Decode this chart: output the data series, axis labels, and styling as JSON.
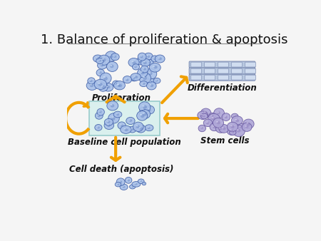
{
  "title": "1. Balance of proliferation & apoptosis",
  "title_fontsize": 13,
  "title_color": "#111111",
  "bg_color": "#f5f5f5",
  "separator_color": "#888888",
  "arrow_color": "#F0A000",
  "box_color": "#daf0ee",
  "box_edgecolor": "#99cccc",
  "labels": {
    "proliferation": "Proliferation",
    "baseline": "Baseline cell population",
    "apoptosis": "Cell death (apoptosis)",
    "differentiation": "Differentiation",
    "stem": "Stem cells"
  },
  "label_fontsize": 8.5,
  "label_bold": true,
  "label_color": "#111111",
  "cell_blue_fill": "#a8c0e8",
  "cell_blue_dark": "#6080c0",
  "cell_blue_nucleus": "#5878b8",
  "cell_blue_edge": "#4060a8",
  "cell_blue_shine": "#d8e8f8",
  "cell_stem_fill": "#b0a8d8",
  "cell_stem_dark": "#8878b8",
  "cell_stem_nucleus": "#7868a8",
  "cell_stem_edge": "#6858a0",
  "diff_bar_fill": "#b8c8e0",
  "diff_bar_edge": "#7888b0",
  "diff_bar_inner": "#d0ddf0"
}
